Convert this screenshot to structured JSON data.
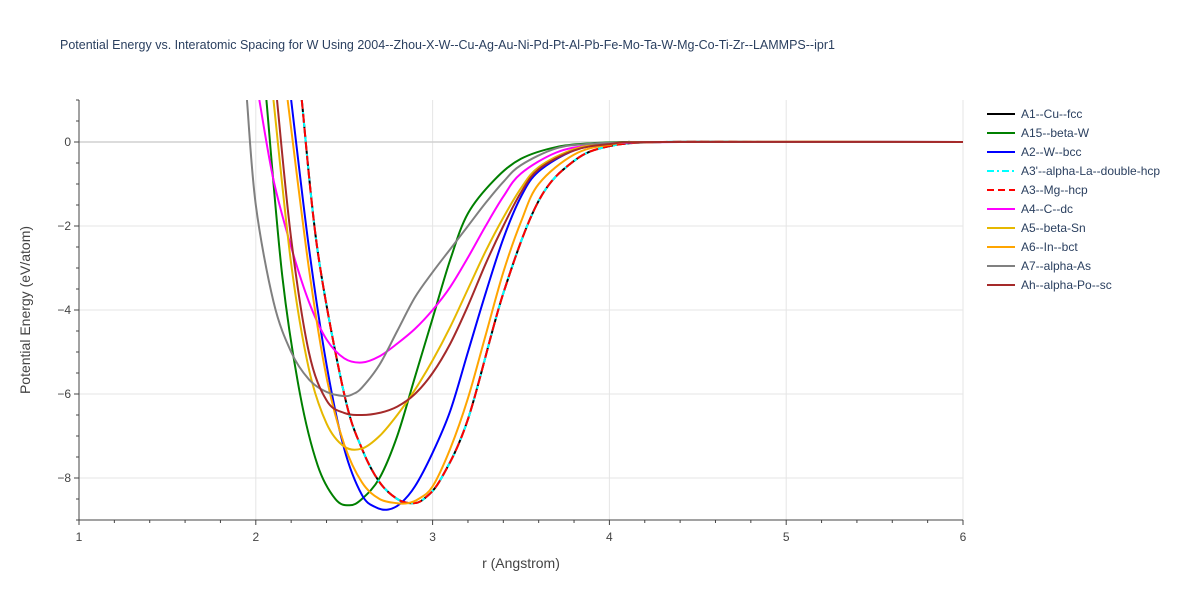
{
  "chart_data": {
    "type": "line",
    "title": "Potential Energy vs. Interatomic Spacing for W Using 2004--Zhou-X-W--Cu-Ag-Au-Ni-Pd-Pt-Al-Pb-Fe-Mo-Ta-W-Mg-Co-Ti-Zr--LAMMPS--ipr1",
    "xlabel": "r (Angstrom)",
    "ylabel": "Potential Energy (eV/atom)",
    "xlim": [
      1,
      6
    ],
    "ylim": [
      -9,
      1
    ],
    "x_ticks": [
      "1",
      "2",
      "3",
      "4",
      "5",
      "6"
    ],
    "y_ticks": [
      "0",
      "−2",
      "−4",
      "−6",
      "−8"
    ],
    "grid": true,
    "legend_position": "right",
    "series": [
      {
        "name": "A1--Cu--fcc",
        "color": "#000000",
        "dash": "solid",
        "x": [
          2.26,
          2.35,
          2.5,
          2.6,
          2.7,
          2.8,
          2.88,
          2.95,
          3.05,
          3.2,
          3.4,
          3.6,
          3.8,
          4.0,
          4.3,
          5.0,
          6.0
        ],
        "y": [
          1.0,
          -2.6,
          -6.0,
          -7.3,
          -8.1,
          -8.5,
          -8.6,
          -8.5,
          -8.0,
          -6.6,
          -3.6,
          -1.4,
          -0.45,
          -0.1,
          0,
          0,
          0
        ]
      },
      {
        "name": "A15--beta-W",
        "color": "#008000",
        "dash": "solid",
        "x": [
          2.06,
          2.15,
          2.25,
          2.35,
          2.45,
          2.53,
          2.6,
          2.7,
          2.8,
          2.9,
          3.0,
          3.1,
          3.2,
          3.35,
          3.5,
          3.7,
          3.9,
          4.1,
          4.3,
          6.0
        ],
        "y": [
          1.0,
          -3.2,
          -6.0,
          -7.7,
          -8.5,
          -8.65,
          -8.5,
          -8.0,
          -7.0,
          -5.6,
          -4.2,
          -2.8,
          -1.7,
          -0.9,
          -0.4,
          -0.12,
          -0.03,
          0,
          0,
          0
        ]
      },
      {
        "name": "A2--W--bcc",
        "color": "#0000ff",
        "dash": "solid",
        "x": [
          2.2,
          2.3,
          2.4,
          2.5,
          2.6,
          2.68,
          2.75,
          2.82,
          2.9,
          3.0,
          3.1,
          3.2,
          3.3,
          3.4,
          3.5,
          3.6,
          3.8,
          4.0,
          4.3,
          6.0
        ],
        "y": [
          1.0,
          -2.5,
          -5.3,
          -7.3,
          -8.4,
          -8.7,
          -8.75,
          -8.6,
          -8.2,
          -7.4,
          -6.4,
          -5.0,
          -3.6,
          -2.3,
          -1.3,
          -0.7,
          -0.2,
          -0.05,
          0,
          0
        ]
      },
      {
        "name": "A3'--alpha-La--double-hcp",
        "color": "#00ffff",
        "dash": "dashdot",
        "x": [
          2.26,
          2.35,
          2.5,
          2.6,
          2.7,
          2.8,
          2.88,
          2.95,
          3.05,
          3.2,
          3.4,
          3.6,
          3.8,
          4.0,
          4.3,
          5.0,
          6.0
        ],
        "y": [
          1.0,
          -2.6,
          -6.0,
          -7.3,
          -8.1,
          -8.5,
          -8.6,
          -8.5,
          -8.0,
          -6.6,
          -3.6,
          -1.4,
          -0.45,
          -0.1,
          0,
          0,
          0
        ]
      },
      {
        "name": "A3--Mg--hcp",
        "color": "#ff0000",
        "dash": "dash",
        "x": [
          2.26,
          2.35,
          2.5,
          2.6,
          2.7,
          2.8,
          2.88,
          2.95,
          3.05,
          3.2,
          3.4,
          3.6,
          3.8,
          4.0,
          4.3,
          5.0,
          6.0
        ],
        "y": [
          1.0,
          -2.6,
          -6.0,
          -7.3,
          -8.1,
          -8.5,
          -8.6,
          -8.5,
          -8.0,
          -6.6,
          -3.6,
          -1.4,
          -0.45,
          -0.1,
          0,
          0,
          0
        ]
      },
      {
        "name": "A4--C--dc",
        "color": "#ff00ff",
        "dash": "solid",
        "x": [
          2.02,
          2.1,
          2.2,
          2.3,
          2.4,
          2.5,
          2.6,
          2.7,
          2.8,
          2.9,
          3.0,
          3.1,
          3.2,
          3.3,
          3.4,
          3.5,
          3.7,
          3.9,
          4.1,
          4.4,
          6.0
        ],
        "y": [
          1.0,
          -0.9,
          -2.5,
          -3.8,
          -4.7,
          -5.15,
          -5.25,
          -5.1,
          -4.8,
          -4.45,
          -4.0,
          -3.45,
          -2.75,
          -2.0,
          -1.3,
          -0.75,
          -0.25,
          -0.07,
          -0.02,
          0,
          0
        ]
      },
      {
        "name": "A5--beta-Sn",
        "color": "#e6b800",
        "dash": "solid",
        "x": [
          2.1,
          2.2,
          2.3,
          2.4,
          2.5,
          2.6,
          2.7,
          2.8,
          2.9,
          3.0,
          3.1,
          3.2,
          3.3,
          3.4,
          3.5,
          3.6,
          3.8,
          4.0,
          4.3,
          6.0
        ],
        "y": [
          1.0,
          -2.9,
          -5.4,
          -6.7,
          -7.25,
          -7.3,
          -7.0,
          -6.5,
          -5.9,
          -5.2,
          -4.4,
          -3.5,
          -2.6,
          -1.8,
          -1.1,
          -0.6,
          -0.17,
          -0.04,
          0,
          0
        ]
      },
      {
        "name": "A6--In--bct",
        "color": "#ffa500",
        "dash": "solid",
        "x": [
          2.18,
          2.3,
          2.4,
          2.5,
          2.6,
          2.7,
          2.8,
          2.86,
          2.92,
          3.0,
          3.1,
          3.2,
          3.3,
          3.4,
          3.5,
          3.6,
          3.8,
          4.0,
          4.3,
          6.0
        ],
        "y": [
          1.0,
          -3.0,
          -5.6,
          -7.2,
          -8.1,
          -8.5,
          -8.6,
          -8.6,
          -8.5,
          -8.2,
          -7.3,
          -6.1,
          -4.6,
          -3.1,
          -1.9,
          -1.0,
          -0.3,
          -0.07,
          0,
          0
        ]
      },
      {
        "name": "A7--alpha-As",
        "color": "#808080",
        "dash": "solid",
        "x": [
          1.95,
          2.0,
          2.1,
          2.2,
          2.3,
          2.4,
          2.5,
          2.55,
          2.6,
          2.7,
          2.8,
          2.9,
          3.0,
          3.1,
          3.2,
          3.3,
          3.4,
          3.5,
          3.7,
          3.9,
          4.1,
          4.4,
          6.0
        ],
        "y": [
          1.0,
          -1.5,
          -3.8,
          -5.0,
          -5.65,
          -5.95,
          -6.05,
          -6.0,
          -5.85,
          -5.3,
          -4.5,
          -3.7,
          -3.1,
          -2.55,
          -2.0,
          -1.45,
          -0.95,
          -0.55,
          -0.15,
          -0.04,
          -0.01,
          0,
          0
        ]
      },
      {
        "name": "Ah--alpha-Po--sc",
        "color": "#a52a2a",
        "dash": "solid",
        "x": [
          2.12,
          2.2,
          2.3,
          2.4,
          2.5,
          2.6,
          2.7,
          2.8,
          2.9,
          3.0,
          3.1,
          3.2,
          3.3,
          3.4,
          3.5,
          3.6,
          3.8,
          4.0,
          4.3,
          6.0
        ],
        "y": [
          1.0,
          -2.3,
          -5.0,
          -6.15,
          -6.45,
          -6.5,
          -6.45,
          -6.3,
          -6.0,
          -5.5,
          -4.8,
          -3.9,
          -2.9,
          -2.0,
          -1.2,
          -0.65,
          -0.2,
          -0.05,
          0,
          0
        ]
      }
    ]
  }
}
